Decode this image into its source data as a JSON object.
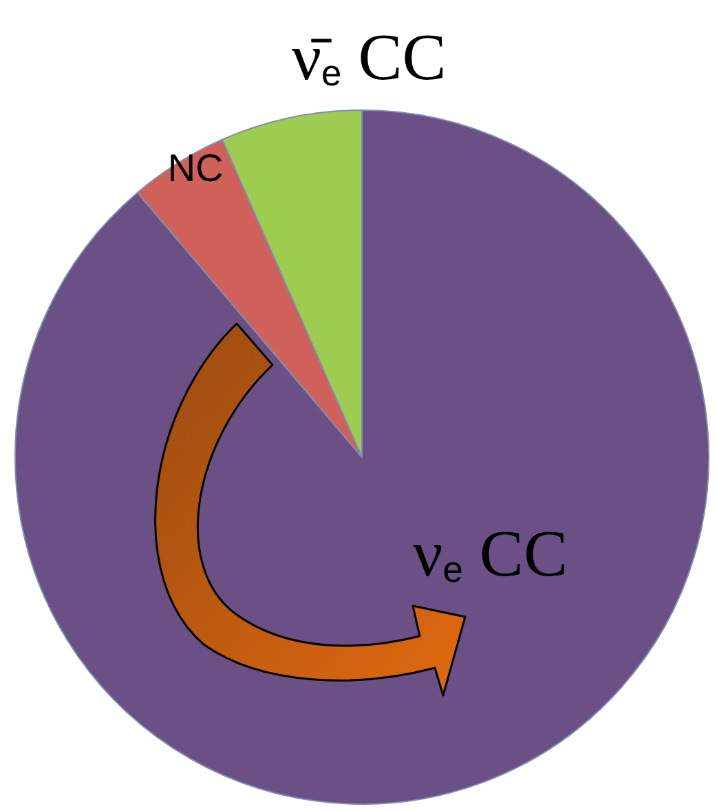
{
  "chart_data": {
    "type": "pie",
    "categories": [
      "ν$_{e}$ CC",
      "NC",
      "ν̄$_{e}$ CC"
    ],
    "values": [
      88.8,
      4.6,
      6.6
    ],
    "colors": [
      "#6b5086",
      "#d0605a",
      "#9ccd50"
    ]
  }
}
